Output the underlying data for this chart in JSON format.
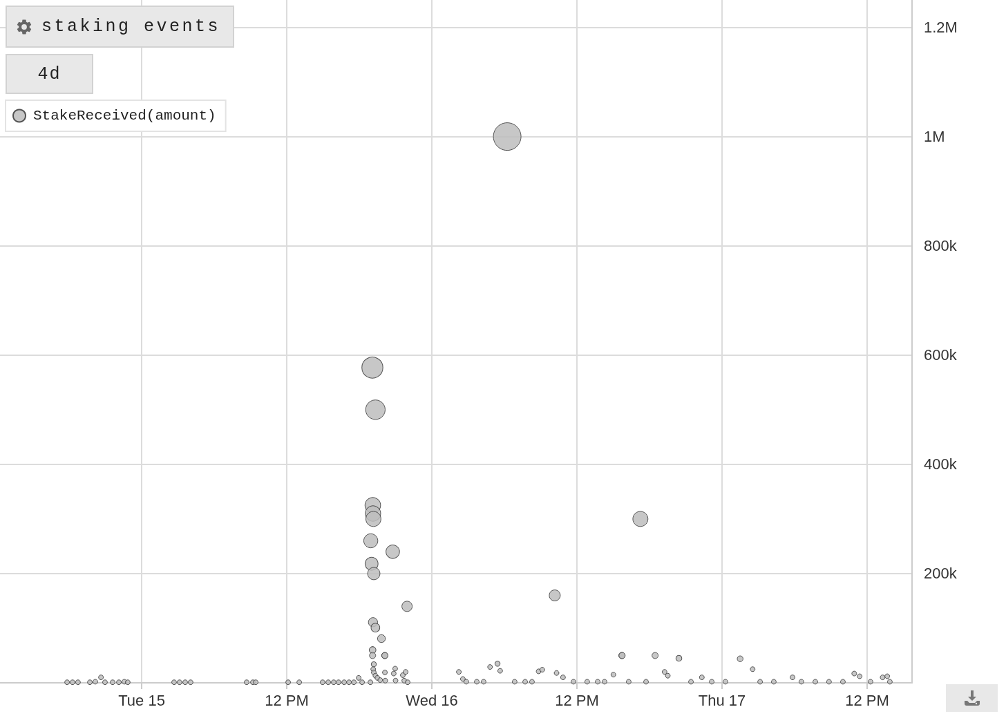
{
  "chart_data": {
    "type": "bubble",
    "title": "staking events",
    "annotations": [
      "4d"
    ],
    "x": [
      "--07-14T17:50",
      "--07-14T18:17",
      "--07-14T18:44",
      "--07-14T19:43",
      "--07-14T20:10",
      "--07-14T20:38",
      "--07-14T20:58",
      "--07-14T21:36",
      "--07-14T22:07",
      "--07-14T22:34",
      "--07-14T22:51",
      "--07-15T02:41",
      "--07-15T03:08",
      "--07-15T03:36",
      "--07-15T04:03",
      "--07-15T08:41",
      "--07-15T09:12",
      "--07-15T09:26",
      "--07-15T12:07",
      "--07-15T13:02",
      "--07-15T14:58",
      "--07-15T15:26",
      "--07-15T15:53",
      "--07-15T16:17",
      "--07-15T16:45",
      "--07-15T17:09",
      "--07-15T17:33",
      "--07-15T17:57",
      "--07-15T18:14",
      "--07-15T18:55",
      "--07-15T18:57",
      "--07-15T19:01",
      "--07-15T19:05",
      "--07-15T19:06",
      "--07-15T19:06",
      "--07-15T19:07",
      "--07-15T19:08",
      "--07-15T19:08",
      "--07-15T19:09",
      "--07-15T19:10",
      "--07-15T19:12",
      "--07-15T19:12",
      "--07-15T19:12",
      "--07-15T19:20",
      "--07-15T19:20",
      "--07-15T19:20",
      "--07-15T19:30",
      "--07-15T19:44",
      "--07-15T19:50",
      "--07-15T20:06",
      "--07-15T20:07",
      "--07-15T20:07",
      "--07-15T20:09",
      "--07-15T20:46",
      "--07-15T20:51",
      "--07-15T20:58",
      "--07-15T21:00",
      "--07-15T21:36",
      "--07-15T21:43",
      "--07-15T21:50",
      "--07-15T21:57",
      "--07-15T22:00",
      "--07-16T02:14",
      "--07-16T02:34",
      "--07-16T02:51",
      "--07-16T03:43",
      "--07-16T04:17",
      "--07-16T04:49",
      "--07-16T05:26",
      "--07-16T05:39",
      "--07-16T06:14",
      "--07-16T06:51",
      "--07-16T07:43",
      "--07-16T08:17",
      "--07-16T08:50",
      "--07-16T09:08",
      "--07-16T10:10",
      "--07-16T10:19",
      "--07-16T10:51",
      "--07-16T11:43",
      "--07-16T12:51",
      "--07-16T13:43",
      "--07-16T14:17",
      "--07-16T15:01",
      "--07-16T15:43",
      "--07-16T15:44",
      "--07-16T16:17",
      "--07-16T17:15",
      "--07-16T17:43",
      "--07-16T18:28",
      "--07-16T19:15",
      "--07-16T19:31",
      "--07-16T20:26",
      "--07-16T21:26",
      "--07-16T22:20",
      "--07-16T23:09",
      "--07-17T00:17",
      "--07-17T01:30",
      "--07-17T02:32",
      "--07-17T03:09",
      "--07-17T04:17",
      "--07-17T05:50",
      "--07-17T06:34",
      "--07-17T07:43",
      "--07-17T08:51",
      "--07-17T10:00",
      "--07-17T10:56",
      "--07-17T11:23",
      "--07-17T12:17",
      "--07-17T13:17",
      "--07-17T13:40",
      "--07-17T13:53"
    ],
    "series": [
      {
        "name": "StakeReceived(amount)",
        "color": "#bdbdbd",
        "values": [
          1000,
          1000,
          1000,
          1000,
          2000,
          10000,
          1000,
          1000,
          1000,
          2000,
          1000,
          1000,
          1000,
          1000,
          1000,
          1000,
          1000,
          1000,
          1000,
          1000,
          1000,
          1000,
          1000,
          1000,
          1000,
          1000,
          1000,
          9000,
          1000,
          1000,
          260000,
          218000,
          577000,
          60000,
          50000,
          325000,
          310000,
          111000,
          25000,
          300000,
          200000,
          34000,
          19000,
          500000,
          101000,
          13000,
          9000,
          5000,
          81000,
          50000,
          50000,
          19000,
          4000,
          240000,
          17000,
          26000,
          4000,
          14000,
          4000,
          20000,
          140000,
          1000,
          20000,
          7000,
          2000,
          2000,
          2000,
          29000,
          35000,
          22000,
          1000000,
          2000,
          2000,
          2000,
          21000,
          24000,
          160000,
          18000,
          10000,
          2000,
          2000,
          2000,
          2000,
          15000,
          50000,
          50000,
          2000,
          300000,
          2000,
          50000,
          20000,
          13000,
          45000,
          2000,
          10000,
          2000,
          2000,
          44000,
          25000,
          2000,
          2000,
          10000,
          2000,
          2000,
          2000,
          2000,
          17000,
          12000,
          2000,
          10000,
          12000,
          2000
        ],
        "sizes": [
          0.03,
          0.03,
          0.03,
          0.03,
          0.03,
          0.03,
          0.03,
          0.03,
          0.03,
          0.03,
          0.03,
          0.03,
          0.03,
          0.03,
          0.03,
          0.03,
          0.03,
          0.03,
          0.03,
          0.03,
          0.03,
          0.03,
          0.03,
          0.03,
          0.03,
          0.03,
          0.03,
          0.03,
          0.03,
          0.03,
          0.26,
          0.22,
          0.58,
          0.06,
          0.05,
          0.32,
          0.31,
          0.11,
          0.03,
          0.3,
          0.2,
          0.034,
          0.03,
          0.5,
          0.1,
          0.03,
          0.03,
          0.03,
          0.081,
          0.05,
          0.05,
          0.03,
          0.03,
          0.24,
          0.03,
          0.03,
          0.03,
          0.03,
          0.03,
          0.03,
          0.14,
          0.03,
          0.03,
          0.03,
          0.03,
          0.03,
          0.03,
          0.03,
          0.035,
          0.03,
          1,
          0.03,
          0.03,
          0.03,
          0.03,
          0.03,
          0.16,
          0.03,
          0.03,
          0.03,
          0.03,
          0.03,
          0.03,
          0.03,
          0.05,
          0.05,
          0.03,
          0.3,
          0.03,
          0.05,
          0.03,
          0.03,
          0.045,
          0.03,
          0.03,
          0.03,
          0.03,
          0.044,
          0.03,
          0.03,
          0.03,
          0.03,
          0.03,
          0.03,
          0.03,
          0.03,
          0.03,
          0.03,
          0.03,
          0.03,
          0.03,
          0.03
        ]
      }
    ],
    "xlim": [
      "--07-14T12:17",
      "--07-17T15:43"
    ],
    "xticks": [
      {
        "value": "--07-15T00:00",
        "label": "Tue 15"
      },
      {
        "value": "--07-15T12:00",
        "label": "12 PM"
      },
      {
        "value": "--07-16T00:00",
        "label": "Wed 16"
      },
      {
        "value": "--07-16T12:00",
        "label": "12 PM"
      },
      {
        "value": "--07-17T00:00",
        "label": "Thu 17"
      },
      {
        "value": "--07-17T12:00",
        "label": "12 PM"
      }
    ],
    "ylim": [
      0,
      1250000
    ],
    "yticks": [
      {
        "value": 200000,
        "label": "200k"
      },
      {
        "value": 400000,
        "label": "400k"
      },
      {
        "value": 600000,
        "label": "600k"
      },
      {
        "value": 800000,
        "label": "800k"
      },
      {
        "value": 1000000,
        "label": "1M"
      },
      {
        "value": 1200000,
        "label": "1.2M"
      }
    ],
    "grid": true,
    "legend": "top left"
  }
}
